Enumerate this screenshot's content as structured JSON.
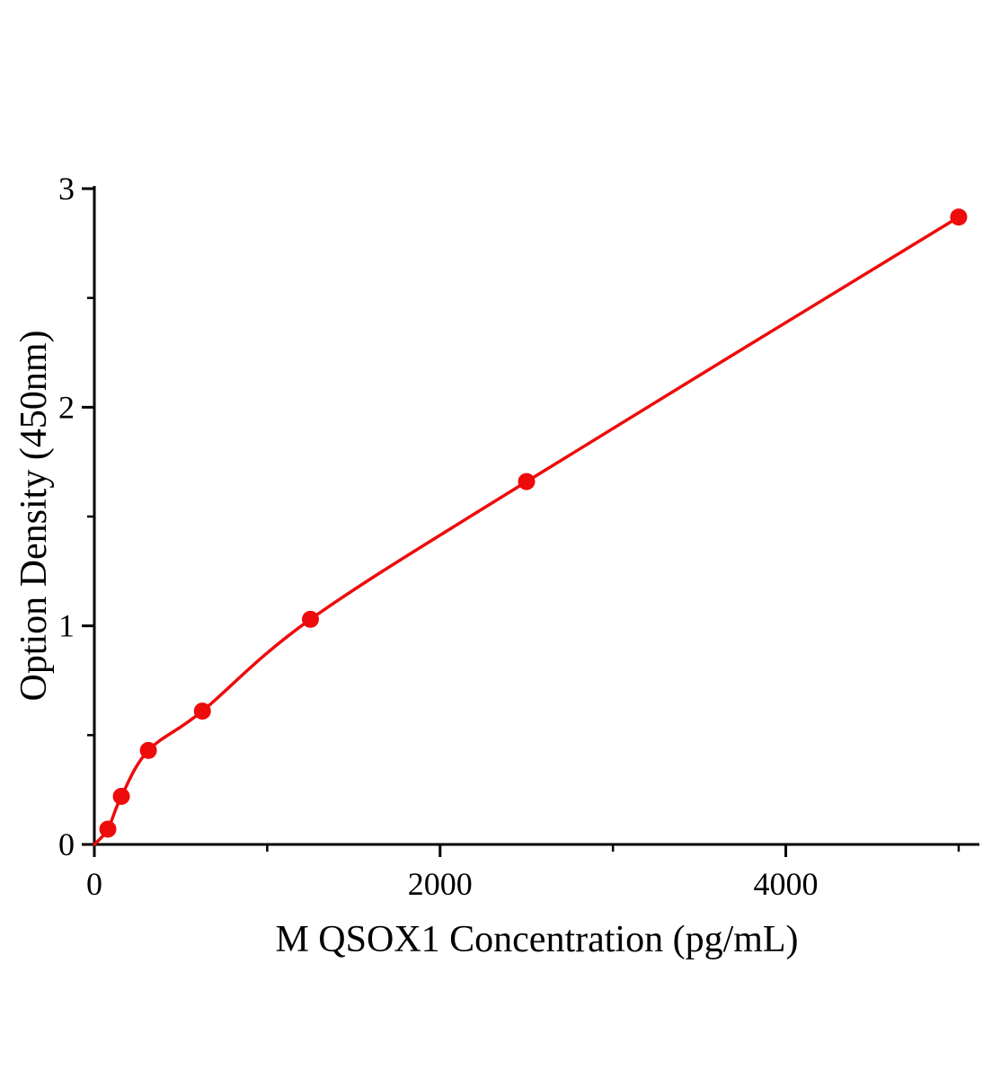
{
  "figure": {
    "background": "#ffffff"
  },
  "chart_data": {
    "type": "scatter",
    "title": "",
    "xlabel": "M QSOX1 Concentration (pg/mL)",
    "ylabel": "Option Density (450nm)",
    "x": [
      78.1,
      156.2,
      312.5,
      625,
      1250,
      2500,
      5000
    ],
    "y": [
      0.07,
      0.22,
      0.43,
      0.61,
      1.03,
      1.66,
      2.87
    ],
    "curve_start": [
      0,
      0
    ],
    "xlim": [
      0,
      5120
    ],
    "ylim": [
      0,
      3
    ],
    "x_major_ticks": [
      0,
      2000,
      4000
    ],
    "x_minor_ticks": [
      1000,
      3000,
      5000
    ],
    "y_major_ticks": [
      0,
      1,
      2,
      3
    ],
    "y_minor_ticks": [
      0.5,
      1.5,
      2.5
    ],
    "grid": false,
    "legend": "none",
    "marker": "circle",
    "point_color": "#ee0b0b",
    "line_color": "#ee0b0b",
    "axis_color": "#000000"
  }
}
